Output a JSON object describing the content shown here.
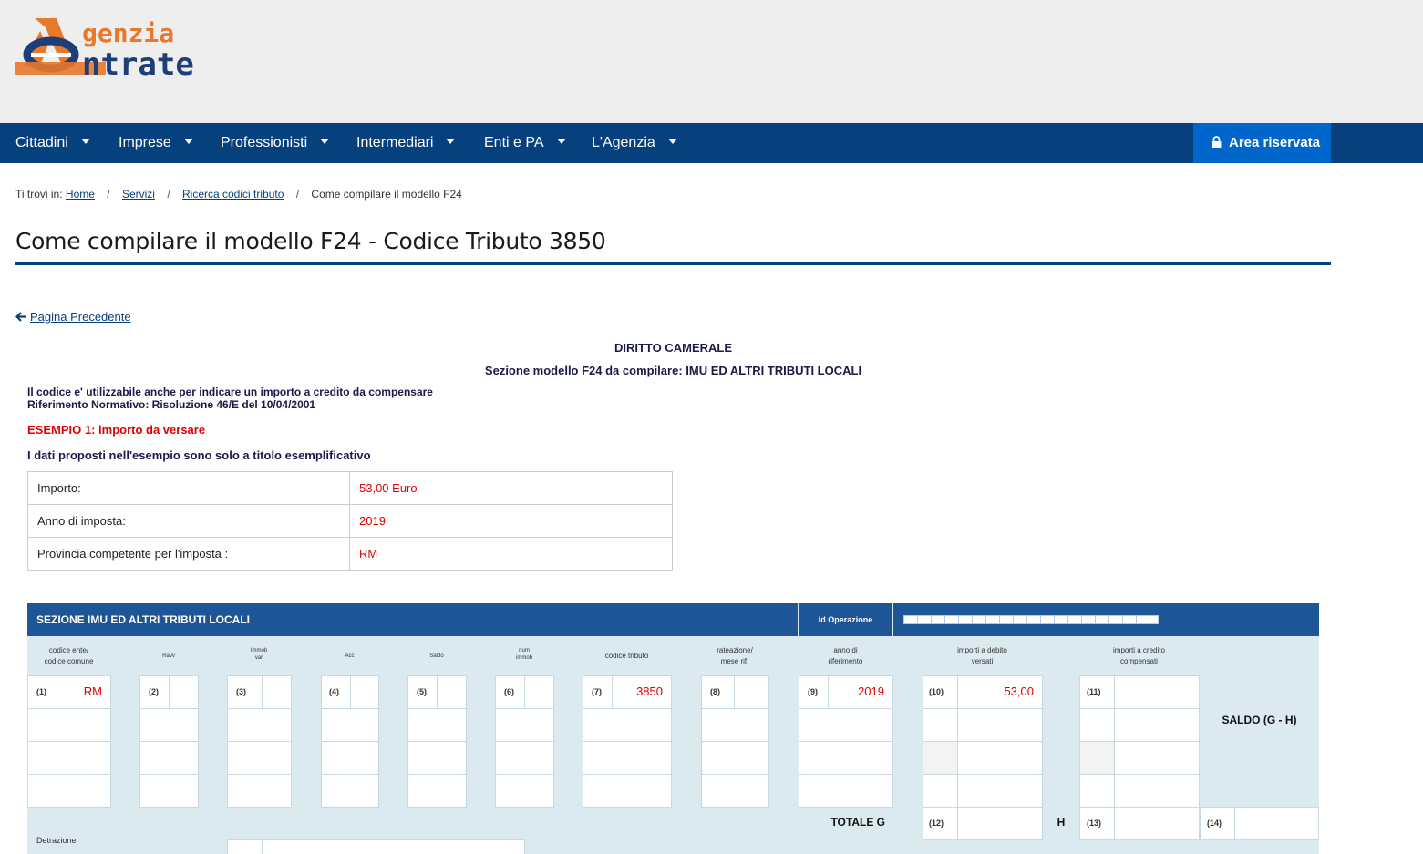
{
  "header": {
    "logo_line1": "genzia",
    "logo_line2": "ntrate"
  },
  "nav": {
    "items": [
      {
        "label": "Cittadini"
      },
      {
        "label": "Imprese"
      },
      {
        "label": "Professionisti"
      },
      {
        "label": "Intermediari"
      },
      {
        "label": "Enti e PA"
      },
      {
        "label": "L'Agenzia"
      }
    ],
    "area_label": "Area riservata"
  },
  "breadcrumb": {
    "prefix": "Ti trovi in:",
    "home": "Home",
    "servizi": "Servizi",
    "ricerca": "Ricerca codici tributo",
    "current": "Come compilare il modello F24"
  },
  "page": {
    "title": "Come compilare il modello F24 - Codice Tributo 3850",
    "back": "Pagina Precedente",
    "heading": "DIRITTO CAMERALE",
    "section_heading": "Sezione modello F24 da compilare: IMU ED ALTRI TRIBUTI LOCALI",
    "note1": "Il codice e' utilizzabile anche per indicare un importo a credito da compensare",
    "note2": "Riferimento Normativo: Risoluzione  46/E del 10/04/2001",
    "example": "ESEMPIO 1: importo da versare",
    "disclaimer": "I dati proposti nell'esempio sono solo a titolo esemplificativo"
  },
  "info": [
    {
      "k": "Importo:",
      "v": "53,00 Euro"
    },
    {
      "k": "Anno di imposta:",
      "v": "2019"
    },
    {
      "k": "Provincia competente per l'imposta :",
      "v": "RM"
    }
  ],
  "f24": {
    "section_title": "SEZIONE IMU ED ALTRI TRIBUTI LOCALI",
    "id_operazione": "Id Operazione",
    "headers": {
      "ente": "codice ente/\ncodice comune",
      "ravv": "Ravv",
      "immvar": "Immob\nvar",
      "acc": "Acc",
      "saldo": "Saldo",
      "num": "num\nimmob",
      "tributo": "codice tributo",
      "rateazione": "rateazione/\nmese rif.",
      "anno": "anno di\nriferimento",
      "debito": "importi a debito\nversati",
      "credito": "importi a credito\ncompensati"
    },
    "labels": {
      "l1": "(1)",
      "l2": "(2)",
      "l3": "(3)",
      "l4": "(4)",
      "l5": "(5)",
      "l6": "(6)",
      "l7": "(7)",
      "l8": "(8)",
      "l9": "(9)",
      "l10": "(10)",
      "l11": "(11)",
      "l12": "(12)",
      "l13": "(13)",
      "l14": "(14)"
    },
    "values": {
      "ente": "RM",
      "tributo": "3850",
      "anno": "2019",
      "debito": "53,00"
    },
    "saldo_label": "SALDO (G - H)",
    "totale_label": "TOTALE  G",
    "h_label": "H",
    "detrazione": "Detrazione"
  },
  "colors": {
    "nav_bg": "#06417d",
    "area_btn": "#0066cc",
    "accent_red": "#e00000",
    "f24_header": "#1e5597",
    "f24_bg": "#dbe9f0"
  }
}
